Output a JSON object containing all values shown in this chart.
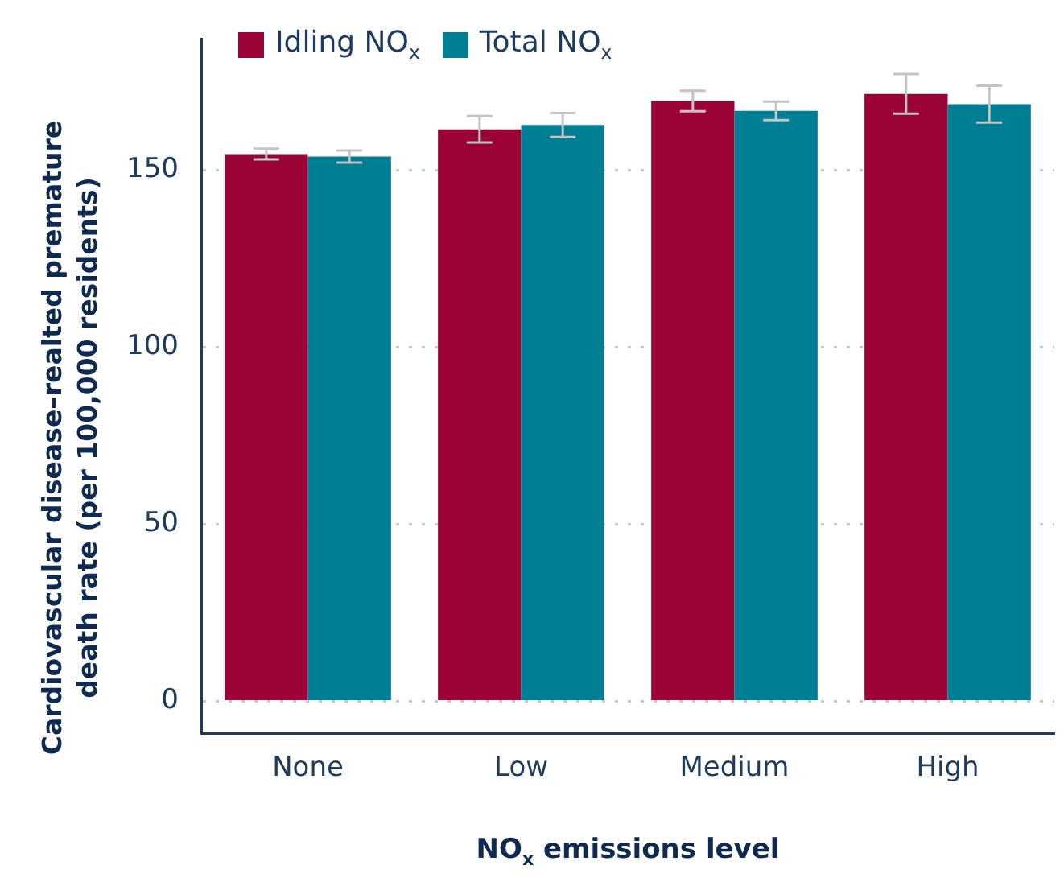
{
  "chart_data": {
    "type": "bar",
    "xlabel": "NO$_{x}$ emissions level",
    "ylabel": "Cardiovascular disease–realted premature death rate (per 100,000 residents)",
    "categories": [
      "None",
      "Low",
      "Medium",
      "High"
    ],
    "series": [
      {
        "name": "Idling NO$_{x}$",
        "color": "#9b0337",
        "values": [
          154.5,
          161.5,
          169.5,
          171.5
        ],
        "errors": [
          1.5,
          3.7,
          2.9,
          5.6
        ]
      },
      {
        "name": "Total NO$_{x}$",
        "color": "#007e93",
        "values": [
          153.8,
          162.7,
          166.7,
          168.6
        ],
        "errors": [
          1.7,
          3.4,
          2.6,
          5.2
        ]
      }
    ],
    "ylim": [
      -9,
      187
    ],
    "yticks": [
      0,
      50,
      100,
      150
    ],
    "grid": "y",
    "legend": "top left"
  }
}
